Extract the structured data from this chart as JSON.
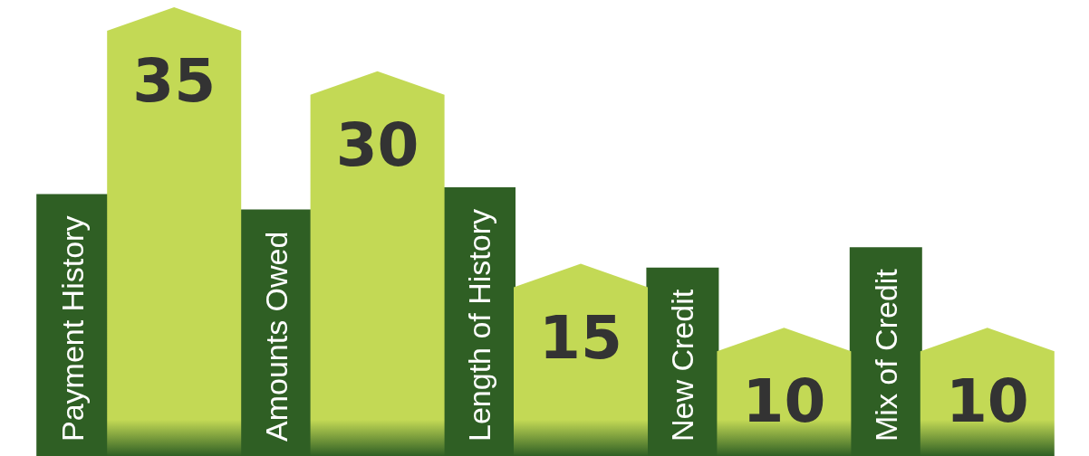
{
  "chart_data": {
    "type": "bar",
    "categories": [
      "Payment History",
      "Amounts Owed",
      "Length of History",
      "New Credit",
      "Mix of Credit"
    ],
    "values": [
      35,
      30,
      15,
      10,
      10
    ],
    "color": "#c3d955",
    "data_labels": true
  }
}
